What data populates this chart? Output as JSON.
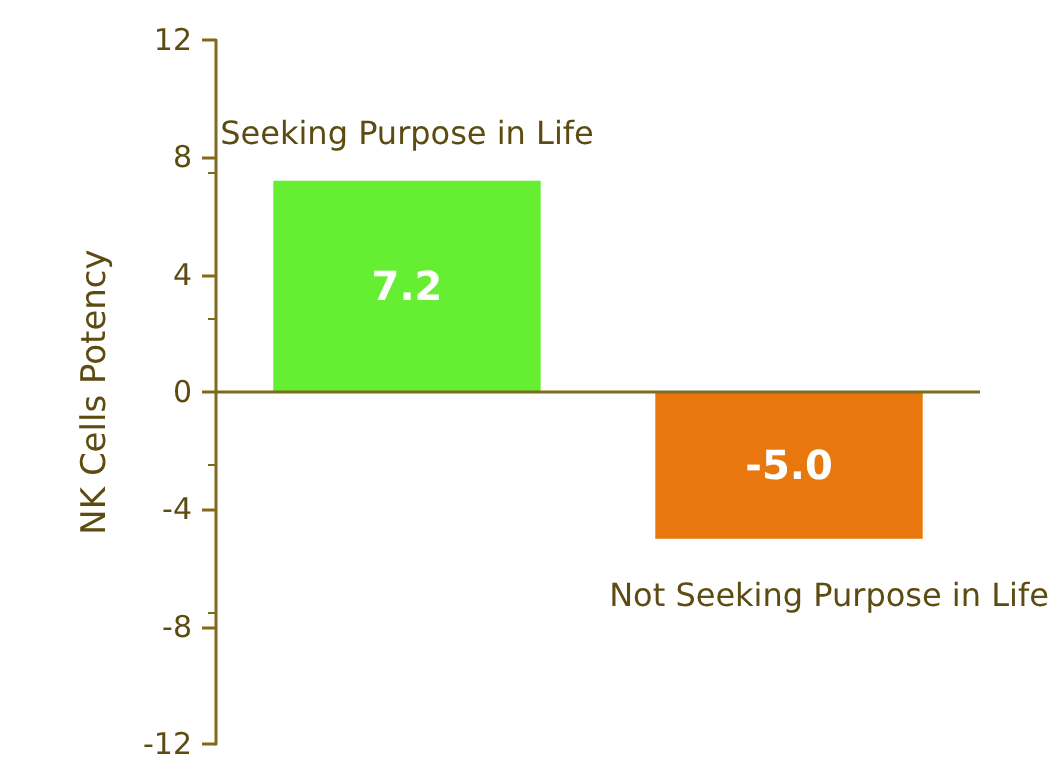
{
  "chart_data": {
    "type": "bar",
    "ylabel": "NK Cells Potency",
    "categories": [
      "Seeking Purpose in Life",
      "Not Seeking Purpose in Life"
    ],
    "values": [
      7.2,
      -5.0
    ],
    "colors": [
      "#66ee33",
      "#e8770e"
    ],
    "ylim": [
      -12,
      12
    ],
    "yticks": [
      -12,
      -8,
      -4,
      0,
      4,
      8,
      12
    ],
    "value_labels": [
      "7.2",
      "-5.0"
    ],
    "grid": false,
    "ref_lines": [
      {
        "axis": "y",
        "value": 0,
        "label": null,
        "color": "#7d6b1e"
      }
    ]
  }
}
